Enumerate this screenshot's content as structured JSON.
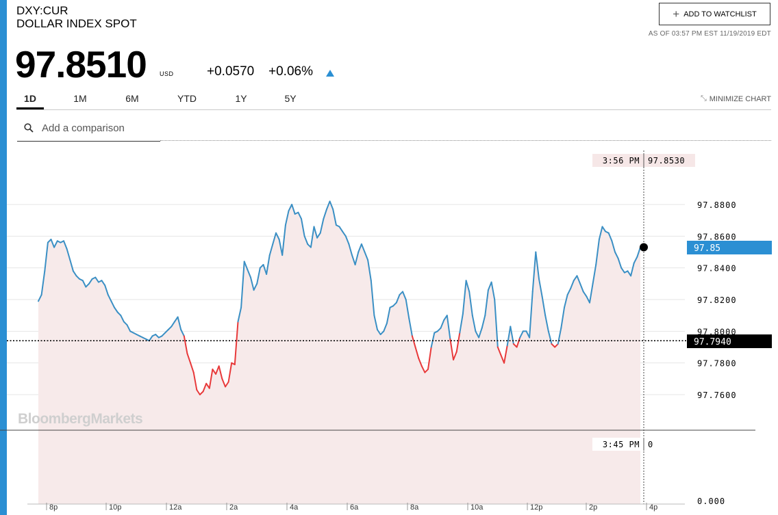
{
  "header": {
    "ticker": "DXY:CUR",
    "name": "DOLLAR INDEX SPOT",
    "price": "97.8510",
    "currency": "USD",
    "change": "+0.0570",
    "change_pct": "+0.06%",
    "watchlist_label": "ADD TO WATCHLIST",
    "as_of": "AS OF 03:57 PM EST 11/19/2019 EDT"
  },
  "tabs": [
    "1D",
    "1M",
    "6M",
    "YTD",
    "1Y",
    "5Y"
  ],
  "active_tab": "1D",
  "minimize_label": "MINIMIZE CHART",
  "search": {
    "placeholder": "Add a comparison"
  },
  "colors": {
    "accent": "#2b8fd3",
    "up": "#3a8fc4",
    "down": "#e8393a",
    "area": "#f7eaea"
  },
  "chart_data": {
    "type": "line",
    "watermark": "BloombergMarkets",
    "x_ticks": [
      "8p",
      "10p",
      "12a",
      "2a",
      "4a",
      "6a",
      "8a",
      "10a",
      "12p",
      "2p",
      "4p"
    ],
    "y_ticks": [
      "97.8800",
      "97.8600",
      "97.8400",
      "97.8200",
      "97.8000",
      "97.7800",
      "97.7600"
    ],
    "volume_axis_zero": "0.000",
    "ylim": [
      97.75,
      97.895
    ],
    "baseline_value": 97.794,
    "baseline_label": "97.7940",
    "current_value_label": "97.85",
    "cursor_top": {
      "time": "3:56 PM",
      "value": "97.8530"
    },
    "cursor_bottom": {
      "time": "3:45 PM",
      "value": "0"
    },
    "series": [
      {
        "values": [
          97.819,
          97.823,
          97.838,
          97.856,
          97.858,
          97.853,
          97.857,
          97.856,
          97.857,
          97.852,
          97.845,
          97.838,
          97.835,
          97.833,
          97.832,
          97.828,
          97.83,
          97.833,
          97.834,
          97.831,
          97.832,
          97.829,
          97.823,
          97.819,
          97.815,
          97.812,
          97.81,
          97.806,
          97.804,
          97.8,
          97.799,
          97.798,
          97.797,
          97.796,
          97.795,
          97.794,
          97.797,
          97.798,
          97.796,
          97.797,
          97.799,
          97.801,
          97.803,
          97.806,
          97.809,
          97.801,
          97.797,
          97.786,
          97.78,
          97.774,
          97.763,
          97.76,
          97.762,
          97.767,
          97.764,
          97.776,
          97.773,
          97.778,
          97.77,
          97.765,
          97.768,
          97.78,
          97.779,
          97.806,
          97.815,
          97.844,
          97.839,
          97.834,
          97.826,
          97.83,
          97.84,
          97.842,
          97.836,
          97.848,
          97.855,
          97.862,
          97.858,
          97.848,
          97.867,
          97.876,
          97.88,
          97.874,
          97.875,
          97.871,
          97.86,
          97.855,
          97.853,
          97.866,
          97.859,
          97.862,
          97.871,
          97.877,
          97.882,
          97.877,
          97.867,
          97.866,
          97.863,
          97.86,
          97.855,
          97.848,
          97.842,
          97.85,
          97.855,
          97.85,
          97.845,
          97.832,
          97.81,
          97.801,
          97.798,
          97.8,
          97.805,
          97.815,
          97.816,
          97.818,
          97.823,
          97.825,
          97.82,
          97.808,
          97.797,
          97.79,
          97.783,
          97.778,
          97.774,
          97.776,
          97.79,
          97.799,
          97.8,
          97.802,
          97.807,
          97.81,
          97.795,
          97.782,
          97.787,
          97.799,
          97.811,
          97.832,
          97.825,
          97.81,
          97.8,
          97.796,
          97.802,
          97.81,
          97.826,
          97.831,
          97.82,
          97.79,
          97.785,
          97.78,
          97.791,
          97.803,
          97.792,
          97.79,
          97.796,
          97.8,
          97.8,
          97.796,
          97.825,
          97.85,
          97.833,
          97.822,
          97.81,
          97.8,
          97.792,
          97.79,
          97.792,
          97.802,
          97.815,
          97.823,
          97.827,
          97.832,
          97.835,
          97.83,
          97.825,
          97.822,
          97.818,
          97.83,
          97.842,
          97.858,
          97.866,
          97.863,
          97.862,
          97.857,
          97.85,
          97.846,
          97.84,
          97.837,
          97.838,
          97.835,
          97.843,
          97.847,
          97.853
        ]
      }
    ]
  }
}
